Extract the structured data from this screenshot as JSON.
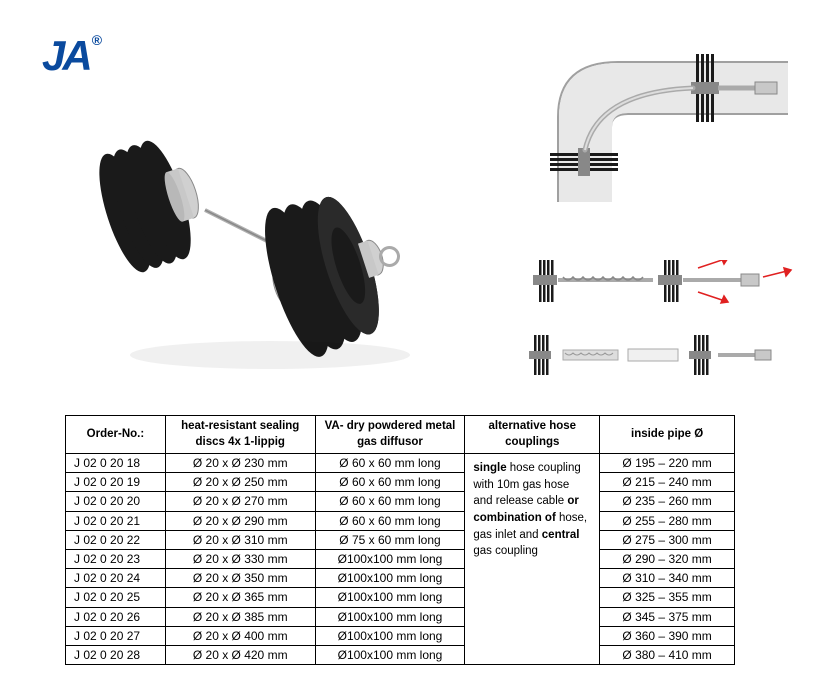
{
  "logo": {
    "text": "JA",
    "registered": "®",
    "color": "#0a4a9e"
  },
  "table": {
    "headers": [
      "Order-No.:",
      "heat-resistant sealing discs 4x 1-lippig",
      "VA- dry powdered metal gas diffusor",
      "alternative hose couplings",
      "inside pipe Ø"
    ],
    "alt_text": "<b>single</b> hose coupling with 10m gas hose and release cable <b>or combination of</b> hose, gas inlet and <b>central</b> gas coupling",
    "rows": [
      {
        "order": "J 02 0 20 18",
        "discs": "Ø 20 x Ø 230 mm",
        "diffusor": "Ø 60 x 60 mm long",
        "pipe": "Ø 195 – 220 mm"
      },
      {
        "order": "J 02 0 20 19",
        "discs": "Ø 20 x Ø 250 mm",
        "diffusor": "Ø 60 x 60 mm long",
        "pipe": "Ø 215 – 240 mm"
      },
      {
        "order": "J 02 0 20 20",
        "discs": "Ø 20 x Ø 270 mm",
        "diffusor": "Ø 60 x 60 mm long",
        "pipe": "Ø 235 – 260 mm"
      },
      {
        "order": "J 02 0 20 21",
        "discs": "Ø 20 x Ø 290 mm",
        "diffusor": "Ø 60 x 60 mm long",
        "pipe": "Ø 255 – 280 mm"
      },
      {
        "order": "J 02 0 20 22",
        "discs": "Ø 20 x Ø 310 mm",
        "diffusor": "Ø 75 x 60 mm long",
        "pipe": "Ø 275 – 300 mm"
      },
      {
        "order": "J 02 0 20 23",
        "discs": "Ø 20 x Ø 330 mm",
        "diffusor": "Ø100x100 mm long",
        "pipe": "Ø 290 – 320 mm"
      },
      {
        "order": "J 02 0 20 24",
        "discs": "Ø 20 x Ø 350 mm",
        "diffusor": "Ø100x100 mm long",
        "pipe": "Ø 310 – 340 mm"
      },
      {
        "order": "J 02 0 20 25",
        "discs": "Ø 20 x Ø 365 mm",
        "diffusor": "Ø100x100 mm long",
        "pipe": "Ø 325 – 355 mm"
      },
      {
        "order": "J 02 0 20 26",
        "discs": "Ø 20 x Ø 385 mm",
        "diffusor": "Ø100x100 mm long",
        "pipe": "Ø 345 – 375 mm"
      },
      {
        "order": "J 02 0 20 27",
        "discs": "Ø 20 x Ø 400 mm",
        "diffusor": "Ø100x100 mm long",
        "pipe": "Ø 360 – 390 mm"
      },
      {
        "order": "J 02 0 20 28",
        "discs": "Ø 20 x Ø 420 mm",
        "diffusor": "Ø100x100 mm long",
        "pipe": "Ø 380 – 410 mm"
      }
    ]
  },
  "product": {
    "disc_color": "#1a1a1a",
    "metal_color": "#c8c8c8",
    "metal_dark": "#888888",
    "rod_color": "#b0b0b0"
  },
  "diagram": {
    "pipe_color": "#d8d8d8",
    "pipe_border": "#a0a0a0",
    "disc_color": "#1a1a1a",
    "rod_color": "#999999",
    "arrow_color": "#e02020"
  }
}
